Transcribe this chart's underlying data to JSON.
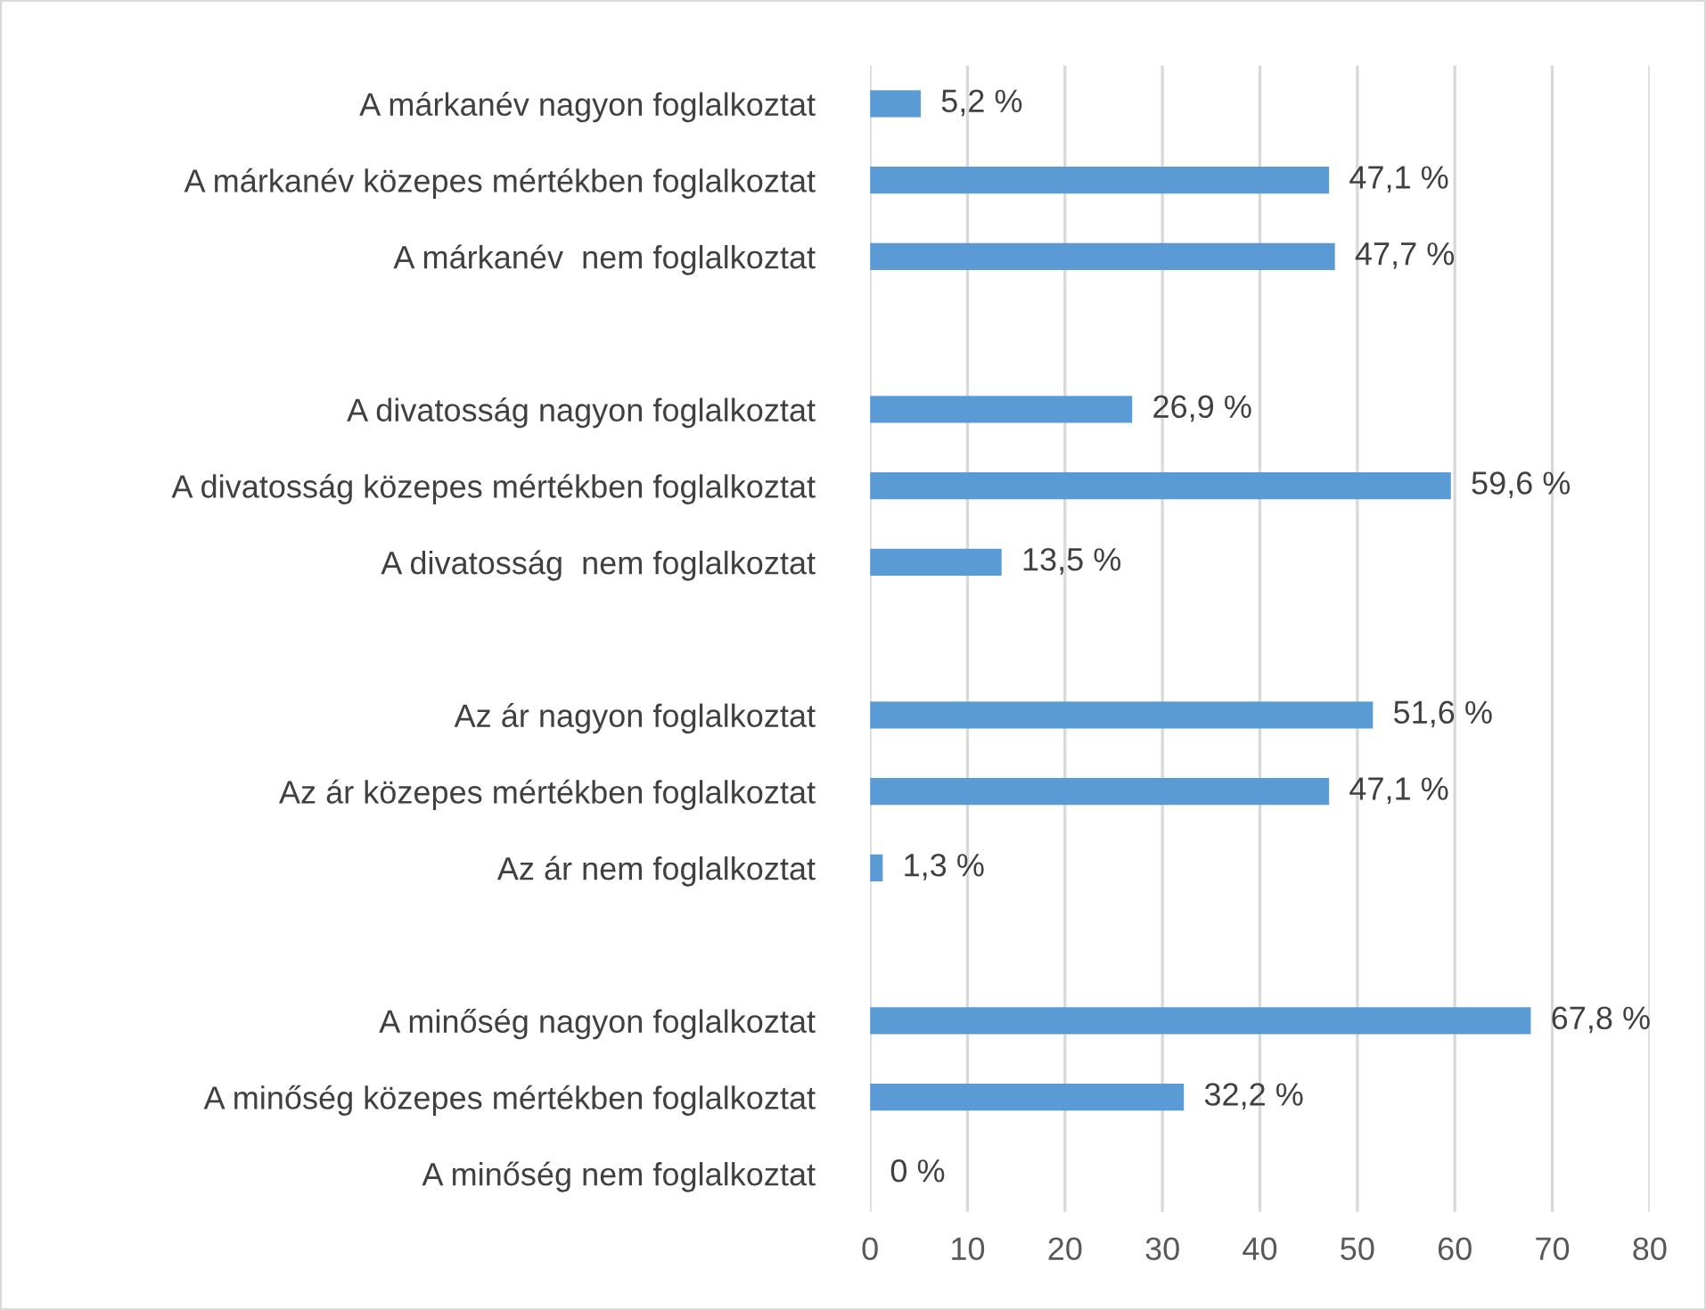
{
  "chart_data": {
    "type": "bar",
    "orientation": "horizontal",
    "categories": [
      "A márkanév nagyon foglalkoztat",
      "A márkanév közepes mértékben foglalkoztat",
      "A márkanév  nem foglalkoztat",
      null,
      "A divatosság nagyon foglalkoztat",
      "A divatosság közepes mértékben foglalkoztat",
      "A divatosság  nem foglalkoztat",
      null,
      "Az ár nagyon foglalkoztat",
      "Az ár közepes mértékben foglalkoztat",
      "Az ár nem foglalkoztat",
      null,
      "A minőség nagyon foglalkoztat",
      "A minőség közepes mértékben foglalkoztat",
      "A minőség nem foglalkoztat"
    ],
    "values": [
      5.2,
      47.1,
      47.7,
      null,
      26.9,
      59.6,
      13.5,
      null,
      51.6,
      47.1,
      1.3,
      null,
      67.8,
      32.2,
      0
    ],
    "value_labels": [
      "5,2 %",
      "47,1 %",
      "47,7 %",
      null,
      "26,9 %",
      "59,6 %",
      "13,5 %",
      null,
      "51,6 %",
      "47,1 %",
      "1,3 %",
      null,
      "67,8 %",
      "32,2 %",
      "0 %"
    ],
    "color": "#5b9bd5",
    "xlim": [
      0,
      80
    ],
    "xticks": [
      0,
      10,
      20,
      30,
      40,
      50,
      60,
      70,
      80
    ],
    "grid": "x",
    "legend": false
  }
}
